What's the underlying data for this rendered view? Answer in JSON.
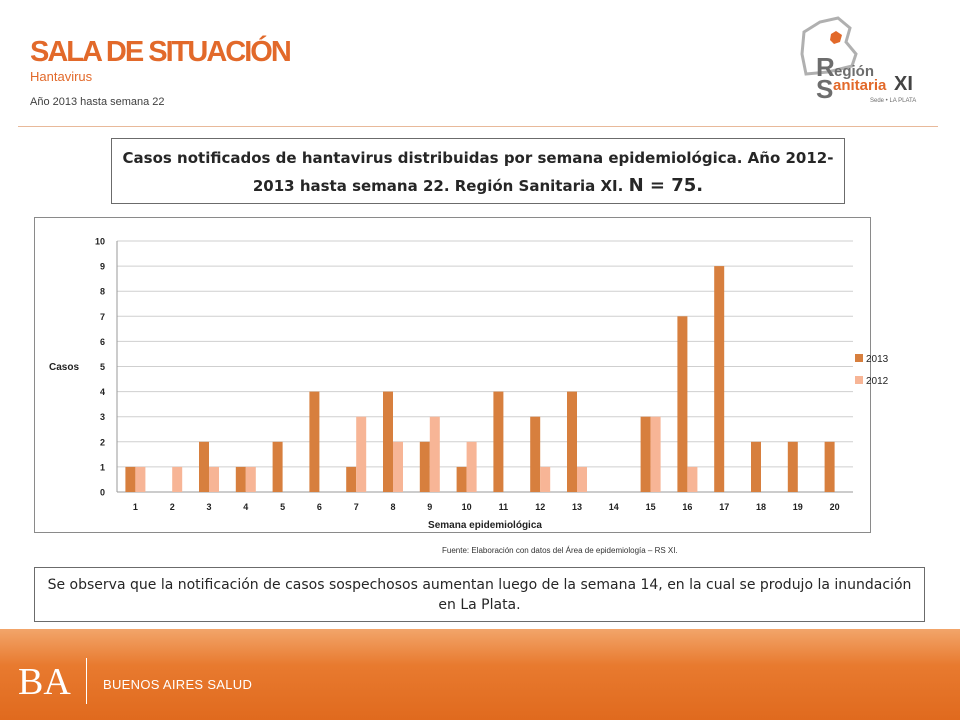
{
  "header": {
    "title": "SALA DE SITUACIÓN",
    "subtitle": "Hantavirus",
    "period": "Año 2013 hasta semana 22"
  },
  "logo": {
    "line1_rest": "egión",
    "line2_rest": "anitaria",
    "roman": "XI",
    "tagline": "Sede • LA PLATA",
    "colors": {
      "accent": "#e2692a",
      "grey": "#6d6d6d"
    }
  },
  "title_box": {
    "text": "Casos notificados de hantavirus distribuidas por semana epidemiológica.  Año 2012-2013 hasta semana 22. Región Sanitaria XI.",
    "n_text": "N = 75."
  },
  "chart_data": {
    "type": "bar",
    "categories": [
      "1",
      "2",
      "3",
      "4",
      "5",
      "6",
      "7",
      "8",
      "9",
      "10",
      "11",
      "12",
      "13",
      "14",
      "15",
      "16",
      "17",
      "18",
      "19",
      "20"
    ],
    "series": [
      {
        "name": "2013",
        "color": "#d77f3e",
        "values": [
          1,
          0,
          2,
          1,
          2,
          4,
          1,
          4,
          2,
          1,
          4,
          3,
          4,
          0,
          3,
          7,
          9,
          2,
          2,
          2
        ]
      },
      {
        "name": "2012",
        "color": "#f7b596",
        "values": [
          1,
          1,
          1,
          1,
          0,
          0,
          3,
          2,
          3,
          2,
          0,
          1,
          1,
          0,
          3,
          1,
          0,
          0,
          0,
          0
        ]
      }
    ],
    "title": "",
    "xlabel": "Semana epidemiológica",
    "ylabel": "Casos",
    "ylim": [
      0,
      10
    ],
    "yticks": [
      0,
      1,
      2,
      3,
      4,
      5,
      6,
      7,
      8,
      9,
      10
    ],
    "grid": true,
    "legend": "right"
  },
  "source_note": "Fuente: Elaboración con datos del Área de epidemiología – RS XI.",
  "note": "Se observa que la notificación de casos sospechosos aumentan luego de la semana 14, en la cual se produjo la inundación en La Plata.",
  "footer": {
    "logo": "BA",
    "text": "BUENOS AIRES SALUD"
  }
}
